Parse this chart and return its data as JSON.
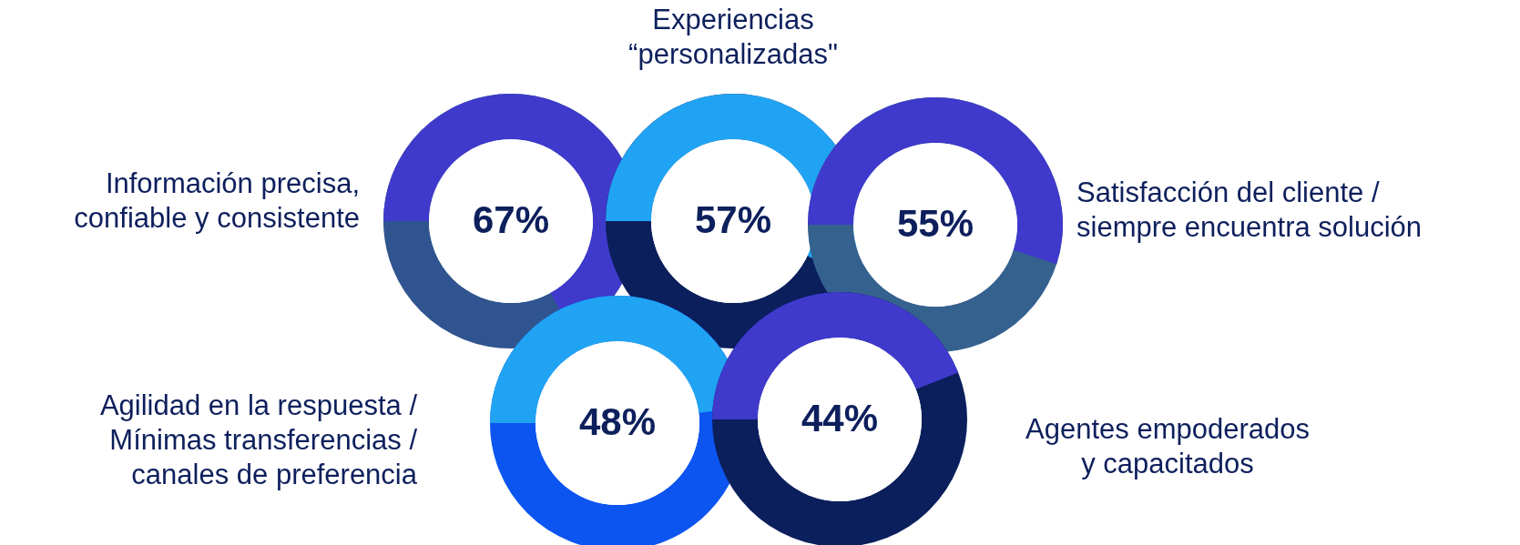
{
  "chart_data": {
    "type": "other",
    "categories": [
      "Información precisa,\nconfiable y consistente",
      "Experiencias\n“personalizadas\"",
      "Satisfacción del cliente /\nsiempre encuentra solución",
      "Agilidad en la respuesta /\nMínimas transferencias /\ncanales de preferencia",
      "Agentes empoderados\ny capacitados"
    ],
    "values": [
      67,
      57,
      55,
      48,
      44
    ],
    "value_labels": [
      "67%",
      "57%",
      "55%",
      "48%",
      "44%"
    ]
  }
}
